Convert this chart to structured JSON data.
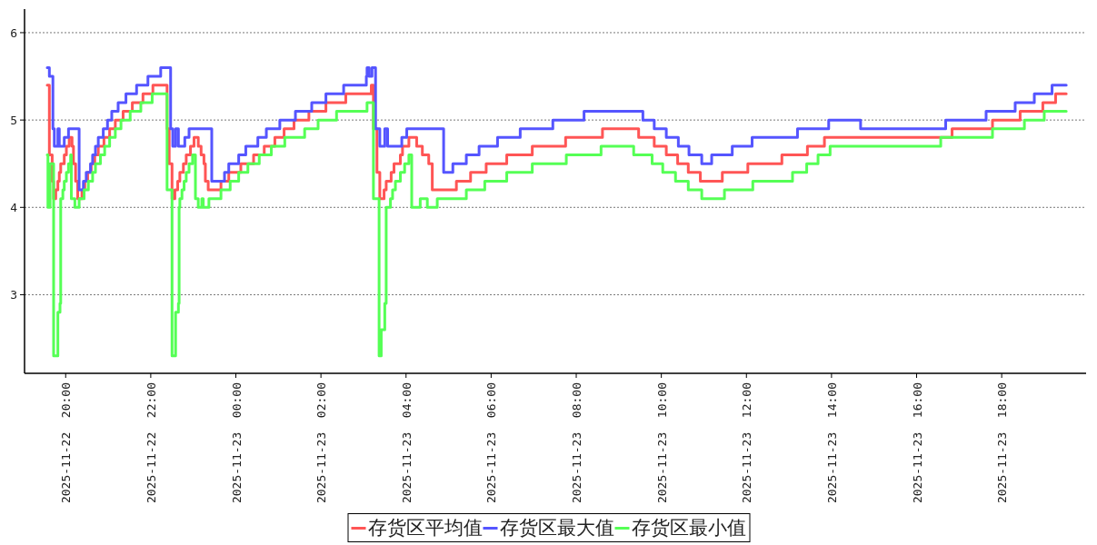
{
  "chart_data": {
    "type": "step",
    "xlim": [
      "2025-11-22T19:02",
      "2025-11-23T19:59"
    ],
    "ylim": [
      2.1,
      6.27
    ],
    "xticks": [
      {
        "value": "2025-11-22T20:00",
        "label": "2025-11-22  20:00"
      },
      {
        "value": "2025-11-22T22:00",
        "label": "2025-11-22  22:00"
      },
      {
        "value": "2025-11-23T00:00",
        "label": "2025-11-23  00:00"
      },
      {
        "value": "2025-11-23T02:00",
        "label": "2025-11-23  02:00"
      },
      {
        "value": "2025-11-23T04:00",
        "label": "2025-11-23  04:00"
      },
      {
        "value": "2025-11-23T06:00",
        "label": "2025-11-23  06:00"
      },
      {
        "value": "2025-11-23T08:00",
        "label": "2025-11-23  08:00"
      },
      {
        "value": "2025-11-23T10:00",
        "label": "2025-11-23  10:00"
      },
      {
        "value": "2025-11-23T12:00",
        "label": "2025-11-23  12:00"
      },
      {
        "value": "2025-11-23T14:00",
        "label": "2025-11-23  14:00"
      },
      {
        "value": "2025-11-23T16:00",
        "label": "2025-11-23  16:00"
      },
      {
        "value": "2025-11-23T18:00",
        "label": "2025-11-23  18:00"
      }
    ],
    "yticks": [
      3,
      4,
      5,
      6
    ],
    "grid": "y",
    "legend": "bottom",
    "marker": "none",
    "line_style": "solid",
    "series": [
      {
        "name": "存货区平均值",
        "color": "#ff5555",
        "x": [
          "2025-11-22T19:34",
          "2025-11-22T19:37",
          "2025-11-22T19:41",
          "2025-11-22T19:43",
          "2025-11-22T19:46",
          "2025-11-22T19:49",
          "2025-11-22T19:51",
          "2025-11-22T19:53",
          "2025-11-22T19:58",
          "2025-11-22T20:01",
          "2025-11-22T20:05",
          "2025-11-22T20:09",
          "2025-11-22T20:11",
          "2025-11-22T20:14",
          "2025-11-22T20:17",
          "2025-11-22T20:23",
          "2025-11-22T20:27",
          "2025-11-22T20:31",
          "2025-11-22T20:36",
          "2025-11-22T20:41",
          "2025-11-22T20:46",
          "2025-11-22T20:54",
          "2025-11-22T21:02",
          "2025-11-22T21:10",
          "2025-11-22T21:21",
          "2025-11-22T21:34",
          "2025-11-22T21:49",
          "2025-11-22T22:03",
          "2025-11-22T22:21",
          "2025-11-22T22:23",
          "2025-11-22T22:26",
          "2025-11-22T22:30",
          "2025-11-22T22:34",
          "2025-11-22T22:38",
          "2025-11-22T22:41",
          "2025-11-22T22:46",
          "2025-11-22T22:50",
          "2025-11-22T22:56",
          "2025-11-22T23:01",
          "2025-11-22T23:07",
          "2025-11-22T23:11",
          "2025-11-22T23:15",
          "2025-11-22T23:17",
          "2025-11-22T23:21",
          "2025-11-22T23:39",
          "2025-11-22T23:50",
          "2025-11-23T00:07",
          "2025-11-23T00:25",
          "2025-11-23T00:40",
          "2025-11-23T00:55",
          "2025-11-23T01:08",
          "2025-11-23T01:22",
          "2025-11-23T01:43",
          "2025-11-23T02:07",
          "2025-11-23T02:35",
          "2025-11-23T03:11",
          "2025-11-23T03:13",
          "2025-11-23T03:14",
          "2025-11-23T03:19",
          "2025-11-23T03:23",
          "2025-11-23T03:29",
          "2025-11-23T03:32",
          "2025-11-23T03:39",
          "2025-11-23T03:43",
          "2025-11-23T03:52",
          "2025-11-23T03:55",
          "2025-11-23T04:04",
          "2025-11-23T04:15",
          "2025-11-23T04:23",
          "2025-11-23T04:32",
          "2025-11-23T04:37",
          "2025-11-23T05:11",
          "2025-11-23T05:31",
          "2025-11-23T05:53",
          "2025-11-23T06:22",
          "2025-11-23T06:58",
          "2025-11-23T07:45",
          "2025-11-23T08:37",
          "2025-11-23T09:28",
          "2025-11-23T09:50",
          "2025-11-23T10:07",
          "2025-11-23T10:23",
          "2025-11-23T10:38",
          "2025-11-23T10:55",
          "2025-11-23T11:26",
          "2025-11-23T12:02",
          "2025-11-23T12:50",
          "2025-11-23T13:26",
          "2025-11-23T13:50",
          "2025-11-23T16:50",
          "2025-11-23T17:47",
          "2025-11-23T18:26",
          "2025-11-23T18:58",
          "2025-11-23T19:16",
          "2025-11-23T19:31"
        ],
        "values": [
          5.4,
          4.6,
          4.3,
          4.1,
          4.2,
          4.3,
          4.4,
          4.5,
          4.6,
          4.7,
          4.8,
          4.7,
          4.5,
          4.3,
          4.1,
          4.2,
          4.3,
          4.4,
          4.5,
          4.6,
          4.7,
          4.8,
          4.9,
          5.0,
          5.1,
          5.2,
          5.3,
          5.4,
          5.4,
          4.9,
          4.5,
          4.1,
          4.2,
          4.3,
          4.4,
          4.5,
          4.6,
          4.7,
          4.8,
          4.7,
          4.6,
          4.5,
          4.3,
          4.2,
          4.3,
          4.4,
          4.5,
          4.6,
          4.7,
          4.8,
          4.9,
          5.0,
          5.1,
          5.2,
          5.3,
          5.4,
          5.4,
          4.9,
          4.4,
          4.1,
          4.2,
          4.3,
          4.4,
          4.5,
          4.6,
          4.7,
          4.8,
          4.7,
          4.6,
          4.5,
          4.2,
          4.3,
          4.4,
          4.5,
          4.6,
          4.7,
          4.8,
          4.9,
          4.8,
          4.7,
          4.6,
          4.5,
          4.4,
          4.3,
          4.4,
          4.5,
          4.6,
          4.7,
          4.8,
          4.9,
          5.0,
          5.1,
          5.2,
          5.3,
          5.3
        ]
      },
      {
        "name": "存货区最大值",
        "color": "#5555ff",
        "x": [
          "2025-11-22T19:34",
          "2025-11-22T19:37",
          "2025-11-22T19:42",
          "2025-11-22T19:44",
          "2025-11-22T19:49",
          "2025-11-22T19:51",
          "2025-11-22T19:58",
          "2025-11-22T20:04",
          "2025-11-22T20:19",
          "2025-11-22T20:25",
          "2025-11-22T20:29",
          "2025-11-22T20:35",
          "2025-11-22T20:38",
          "2025-11-22T20:42",
          "2025-11-22T20:46",
          "2025-11-22T20:53",
          "2025-11-22T20:59",
          "2025-11-22T21:05",
          "2025-11-22T21:14",
          "2025-11-22T21:25",
          "2025-11-22T21:40",
          "2025-11-22T21:56",
          "2025-11-22T22:14",
          "2025-11-22T22:22",
          "2025-11-22T22:28",
          "2025-11-22T22:31",
          "2025-11-22T22:35",
          "2025-11-22T22:39",
          "2025-11-22T22:48",
          "2025-11-22T22:54",
          "2025-11-22T23:26",
          "2025-11-22T23:44",
          "2025-11-22T23:50",
          "2025-11-23T00:04",
          "2025-11-23T00:14",
          "2025-11-23T00:31",
          "2025-11-23T00:43",
          "2025-11-23T01:02",
          "2025-11-23T01:24",
          "2025-11-23T01:47",
          "2025-11-23T02:07",
          "2025-11-23T02:32",
          "2025-11-23T03:04",
          "2025-11-23T03:05",
          "2025-11-23T03:08",
          "2025-11-23T03:12",
          "2025-11-23T03:13",
          "2025-11-23T03:17",
          "2025-11-23T03:23",
          "2025-11-23T03:30",
          "2025-11-23T03:34",
          "2025-11-23T03:54",
          "2025-11-23T04:01",
          "2025-11-23T04:53",
          "2025-11-23T05:06",
          "2025-11-23T05:25",
          "2025-11-23T05:43",
          "2025-11-23T06:09",
          "2025-11-23T06:41",
          "2025-11-23T07:27",
          "2025-11-23T08:11",
          "2025-11-23T09:34",
          "2025-11-23T09:50",
          "2025-11-23T10:07",
          "2025-11-23T10:24",
          "2025-11-23T10:39",
          "2025-11-23T10:57",
          "2025-11-23T11:11",
          "2025-11-23T11:40",
          "2025-11-23T12:08",
          "2025-11-23T13:12",
          "2025-11-23T13:56",
          "2025-11-23T14:41",
          "2025-11-23T16:41",
          "2025-11-23T17:38",
          "2025-11-23T18:19",
          "2025-11-23T18:46",
          "2025-11-23T19:11",
          "2025-11-23T19:31"
        ],
        "values": [
          5.6,
          5.5,
          4.9,
          4.7,
          4.9,
          4.7,
          4.8,
          4.9,
          4.2,
          4.3,
          4.4,
          4.5,
          4.6,
          4.7,
          4.8,
          4.9,
          5.0,
          5.1,
          5.2,
          5.3,
          5.4,
          5.5,
          5.6,
          5.6,
          4.9,
          4.7,
          4.9,
          4.7,
          4.8,
          4.9,
          4.3,
          4.4,
          4.5,
          4.6,
          4.7,
          4.8,
          4.9,
          5.0,
          5.1,
          5.2,
          5.3,
          5.4,
          5.5,
          5.6,
          5.5,
          5.6,
          5.6,
          4.9,
          4.7,
          4.9,
          4.7,
          4.8,
          4.9,
          4.4,
          4.5,
          4.6,
          4.7,
          4.8,
          4.9,
          5.0,
          5.1,
          5.0,
          4.9,
          4.8,
          4.7,
          4.6,
          4.5,
          4.6,
          4.7,
          4.8,
          4.9,
          5.0,
          4.9,
          5.0,
          5.1,
          5.2,
          5.3,
          5.4,
          5.4
        ]
      },
      {
        "name": "存货区最小值",
        "color": "#55ff55",
        "x": [
          "2025-11-22T19:34",
          "2025-11-22T19:35",
          "2025-11-22T19:38",
          "2025-11-22T19:43",
          "2025-11-22T19:46",
          "2025-11-22T19:49",
          "2025-11-22T19:52",
          "2025-11-22T19:53",
          "2025-11-22T19:56",
          "2025-11-22T19:58",
          "2025-11-22T20:01",
          "2025-11-22T20:04",
          "2025-11-22T20:07",
          "2025-11-22T20:08",
          "2025-11-22T20:13",
          "2025-11-22T20:19",
          "2025-11-22T20:26",
          "2025-11-22T20:32",
          "2025-11-22T20:38",
          "2025-11-22T20:42",
          "2025-11-22T20:49",
          "2025-11-22T20:55",
          "2025-11-22T21:02",
          "2025-11-22T21:10",
          "2025-11-22T21:18",
          "2025-11-22T21:31",
          "2025-11-22T21:46",
          "2025-11-22T22:02",
          "2025-11-22T22:21",
          "2025-11-22T22:23",
          "2025-11-22T22:30",
          "2025-11-22T22:35",
          "2025-11-22T22:39",
          "2025-11-22T22:40",
          "2025-11-22T22:41",
          "2025-11-22T22:44",
          "2025-11-22T22:47",
          "2025-11-22T22:50",
          "2025-11-22T22:54",
          "2025-11-22T22:59",
          "2025-11-22T23:03",
          "2025-11-22T23:07",
          "2025-11-22T23:12",
          "2025-11-22T23:14",
          "2025-11-22T23:22",
          "2025-11-22T23:39",
          "2025-11-22T23:52",
          "2025-11-23T00:04",
          "2025-11-23T00:17",
          "2025-11-23T00:33",
          "2025-11-23T00:50",
          "2025-11-23T01:09",
          "2025-11-23T01:37",
          "2025-11-23T01:56",
          "2025-11-23T02:22",
          "2025-11-23T03:05",
          "2025-11-23T03:11",
          "2025-11-23T03:14",
          "2025-11-23T03:22",
          "2025-11-23T03:25",
          "2025-11-23T03:30",
          "2025-11-23T03:32",
          "2025-11-23T03:38",
          "2025-11-23T03:41",
          "2025-11-23T03:45",
          "2025-11-23T03:52",
          "2025-11-23T03:58",
          "2025-11-23T04:04",
          "2025-11-23T04:08",
          "2025-11-23T04:20",
          "2025-11-23T04:30",
          "2025-11-23T04:44",
          "2025-11-23T05:25",
          "2025-11-23T05:51",
          "2025-11-23T06:22",
          "2025-11-23T06:58",
          "2025-11-23T07:46",
          "2025-11-23T08:35",
          "2025-11-23T09:21",
          "2025-11-23T09:47",
          "2025-11-23T10:02",
          "2025-11-23T10:20",
          "2025-11-23T10:38",
          "2025-11-23T10:57",
          "2025-11-23T11:29",
          "2025-11-23T12:09",
          "2025-11-23T13:05",
          "2025-11-23T13:25",
          "2025-11-23T13:41",
          "2025-11-23T13:58",
          "2025-11-23T16:34",
          "2025-11-23T17:47",
          "2025-11-23T18:32",
          "2025-11-23T19:00",
          "2025-11-23T19:31"
        ],
        "values": [
          4.6,
          4.0,
          4.5,
          2.3,
          2.3,
          2.8,
          2.9,
          4.1,
          4.2,
          4.3,
          4.4,
          4.5,
          4.6,
          4.1,
          4.0,
          4.1,
          4.2,
          4.3,
          4.4,
          4.5,
          4.6,
          4.7,
          4.8,
          4.9,
          5.0,
          5.1,
          5.2,
          5.3,
          5.3,
          4.2,
          2.3,
          2.8,
          2.9,
          4.0,
          4.1,
          4.2,
          4.3,
          4.4,
          4.5,
          4.6,
          4.1,
          4.0,
          4.1,
          4.0,
          4.1,
          4.2,
          4.3,
          4.4,
          4.5,
          4.6,
          4.7,
          4.8,
          4.9,
          5.0,
          5.1,
          5.2,
          5.2,
          4.1,
          2.3,
          2.6,
          2.9,
          4.0,
          4.1,
          4.2,
          4.3,
          4.4,
          4.5,
          4.6,
          4.0,
          4.1,
          4.0,
          4.1,
          4.2,
          4.3,
          4.4,
          4.5,
          4.6,
          4.7,
          4.6,
          4.5,
          4.4,
          4.3,
          4.2,
          4.1,
          4.2,
          4.3,
          4.4,
          4.5,
          4.6,
          4.7,
          4.8,
          4.9,
          5.0,
          5.1,
          5.1
        ]
      }
    ]
  }
}
